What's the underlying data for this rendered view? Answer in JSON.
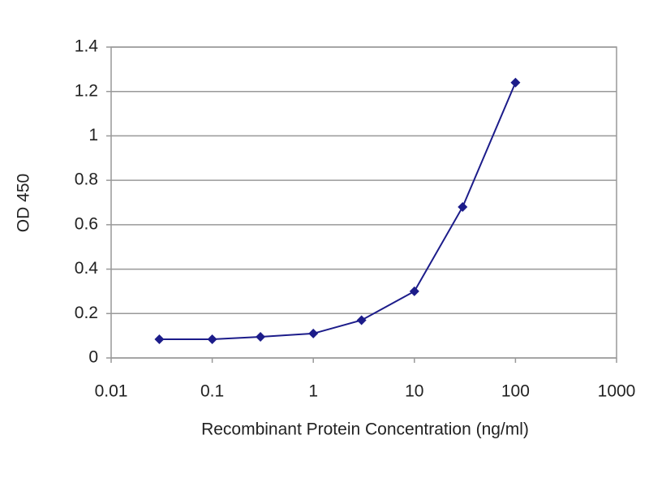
{
  "chart_data": {
    "type": "line",
    "xlabel": "Recombinant Protein Concentration (ng/ml)",
    "ylabel": "OD 450",
    "x": [
      0.03,
      0.1,
      0.3,
      1,
      3,
      10,
      30,
      100
    ],
    "values": [
      0.084,
      0.084,
      0.095,
      0.11,
      0.17,
      0.3,
      0.68,
      1.24
    ],
    "color": "#1c1c8a",
    "xscale": "log",
    "xlim": [
      0.01,
      1000
    ],
    "xticks": [
      0.01,
      0.1,
      1,
      10,
      100,
      1000
    ],
    "ylim": [
      0,
      1.4
    ],
    "yticks": [
      0,
      0.2,
      0.4,
      0.6,
      0.8,
      1,
      1.2,
      1.4
    ],
    "grid": true
  }
}
